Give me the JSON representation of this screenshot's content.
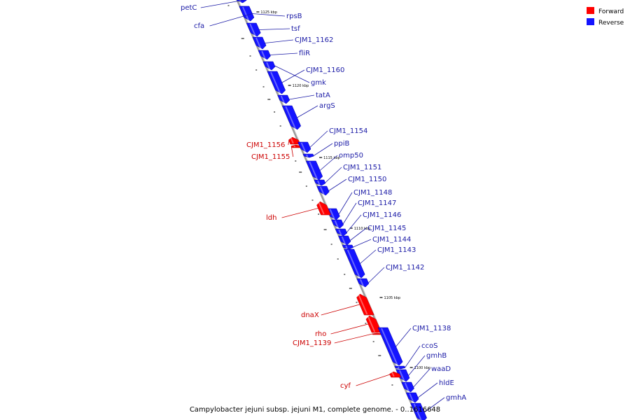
{
  "caption": "Campylobacter jejuni subsp. jejuni M1, complete genome. - 0..1616648",
  "legend": [
    {
      "label": "Forward",
      "color": "#ff0000"
    },
    {
      "label": "Reverse",
      "color": "#0000ff"
    }
  ],
  "colors": {
    "forward": "#ff0000",
    "reverse": "#1414ff",
    "forward_label": "#cc0000",
    "reverse_label": "#1a1aa6",
    "backbone": "#9a9a9a"
  },
  "ticks": [
    "1125 kbp",
    "1120 kbp",
    "1115 kbp",
    "1110 kbp",
    "1105 kbp",
    "1100 kbp"
  ],
  "genes": [
    {
      "name": "petC",
      "strand": "reverse"
    },
    {
      "name": "cfa",
      "strand": "reverse"
    },
    {
      "name": "rpsB",
      "strand": "reverse"
    },
    {
      "name": "tsf",
      "strand": "reverse"
    },
    {
      "name": "CJM1_1162",
      "strand": "reverse"
    },
    {
      "name": "fliR",
      "strand": "reverse"
    },
    {
      "name": "CJM1_1160",
      "strand": "reverse"
    },
    {
      "name": "gmk",
      "strand": "reverse"
    },
    {
      "name": "tatA",
      "strand": "reverse"
    },
    {
      "name": "argS",
      "strand": "reverse"
    },
    {
      "name": "CJM1_1156",
      "strand": "forward"
    },
    {
      "name": "CJM1_1155",
      "strand": "forward"
    },
    {
      "name": "CJM1_1154",
      "strand": "reverse"
    },
    {
      "name": "ppiB",
      "strand": "reverse"
    },
    {
      "name": "omp50",
      "strand": "reverse"
    },
    {
      "name": "CJM1_1151",
      "strand": "reverse"
    },
    {
      "name": "CJM1_1150",
      "strand": "reverse"
    },
    {
      "name": "CJM1_1148",
      "strand": "reverse"
    },
    {
      "name": "ldh",
      "strand": "forward"
    },
    {
      "name": "CJM1_1147",
      "strand": "reverse"
    },
    {
      "name": "CJM1_1146",
      "strand": "reverse"
    },
    {
      "name": "CJM1_1145",
      "strand": "reverse"
    },
    {
      "name": "CJM1_1144",
      "strand": "reverse"
    },
    {
      "name": "CJM1_1143",
      "strand": "reverse"
    },
    {
      "name": "CJM1_1142",
      "strand": "reverse"
    },
    {
      "name": "dnaX",
      "strand": "forward"
    },
    {
      "name": "rho",
      "strand": "forward"
    },
    {
      "name": "CJM1_1139",
      "strand": "forward"
    },
    {
      "name": "CJM1_1138",
      "strand": "reverse"
    },
    {
      "name": "ccoS",
      "strand": "reverse"
    },
    {
      "name": "gmhB",
      "strand": "reverse"
    },
    {
      "name": "cyf",
      "strand": "forward"
    },
    {
      "name": "waaD",
      "strand": "reverse"
    },
    {
      "name": "hldE",
      "strand": "reverse"
    },
    {
      "name": "gmhA",
      "strand": "reverse"
    }
  ]
}
